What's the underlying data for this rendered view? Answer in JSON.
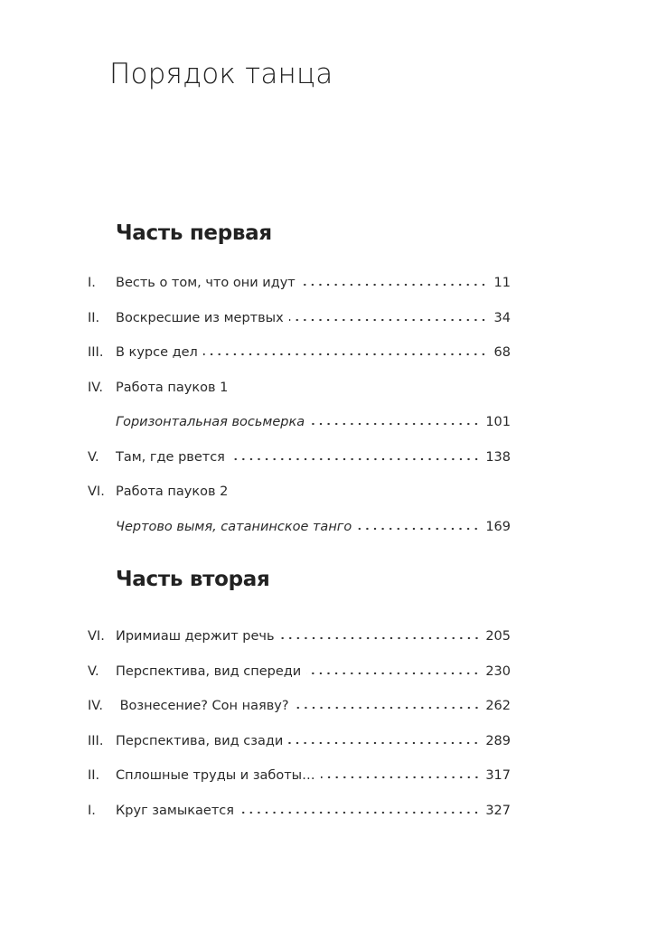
{
  "title": "Порядок танца",
  "parts": [
    {
      "heading": "Часть первая",
      "entries": [
        {
          "numeral": "I.",
          "text": "Весть о том, что они идут",
          "page": "11",
          "italic": false
        },
        {
          "numeral": "II.",
          "text": "Воскресшие из мертвых",
          "page": "34",
          "italic": false
        },
        {
          "numeral": "III.",
          "text": "В курсе дел",
          "page": "68",
          "italic": false
        },
        {
          "numeral": "IV.",
          "text": "Работа пауков 1",
          "page": null,
          "italic": false
        },
        {
          "numeral": "",
          "text": "Горизонтальная восьмерка",
          "page": "101",
          "italic": true
        },
        {
          "numeral": "V.",
          "text": "Там, где рвется",
          "page": "138",
          "italic": false
        },
        {
          "numeral": "VI.",
          "text": "Работа пауков 2",
          "page": null,
          "italic": false
        },
        {
          "numeral": "",
          "text": "Чертово вымя, сатанинское танго",
          "page": "169",
          "italic": true
        }
      ]
    },
    {
      "heading": "Часть вторая",
      "entries": [
        {
          "numeral": "VI.",
          "text": "Иримиаш держит речь",
          "page": "205",
          "italic": false
        },
        {
          "numeral": "V.",
          "text": "Перспектива, вид спереди",
          "page": "230",
          "italic": false
        },
        {
          "numeral": "IV.",
          "text": " Вознесение? Сон наяву?",
          "page": "262",
          "italic": false
        },
        {
          "numeral": "III.",
          "text": "Перспектива, вид сзади",
          "page": "289",
          "italic": false
        },
        {
          "numeral": "II.",
          "text": "Сплошные труды и заботы…",
          "page": "317",
          "italic": false
        },
        {
          "numeral": "I.",
          "text": "Круг замыкается",
          "page": "327",
          "italic": false
        }
      ]
    }
  ]
}
